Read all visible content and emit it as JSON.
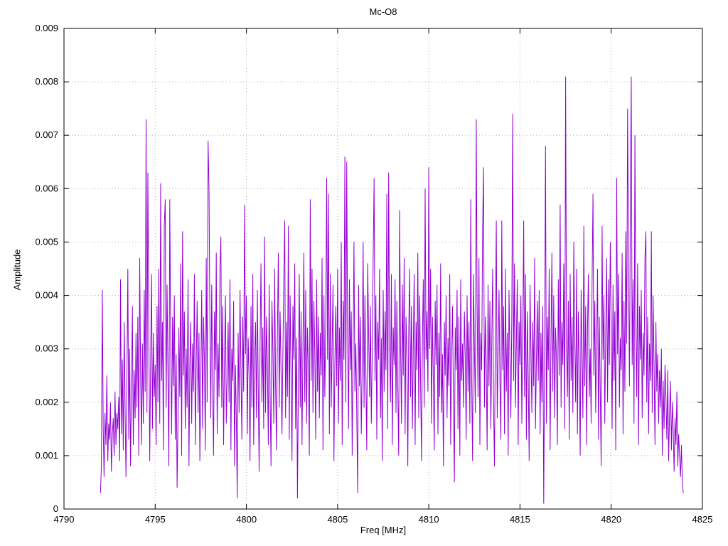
{
  "page": {
    "background": "#ffffff"
  },
  "chart_data": {
    "type": "line",
    "title": "Mc-O8",
    "xlabel": "Freq [MHz]",
    "ylabel": "Amplitude",
    "xlim": [
      4790,
      4825
    ],
    "ylim": [
      0,
      0.009
    ],
    "x_ticks": [
      4790,
      4795,
      4800,
      4805,
      4810,
      4815,
      4820,
      4825
    ],
    "y_ticks": [
      0,
      0.001,
      0.002,
      0.003,
      0.004,
      0.005,
      0.006,
      0.007,
      0.008,
      0.009
    ],
    "grid": true,
    "legend": "none",
    "line_color": "#9400d3",
    "grid_color": "#b5b5b5",
    "axis_color": "#000000",
    "series_x_start": 4792.0,
    "series_x_step": 0.05,
    "amplitude_scale": 0.0001,
    "values": [
      3,
      8,
      41,
      15,
      6,
      18,
      12,
      25,
      9,
      16,
      13,
      20,
      7,
      14,
      17,
      10,
      22,
      12,
      18,
      15,
      21,
      9,
      43,
      14,
      28,
      11,
      35,
      18,
      6,
      24,
      45,
      13,
      30,
      8,
      22,
      38,
      12,
      26,
      17,
      33,
      19,
      36,
      10,
      47,
      25,
      12,
      31,
      16,
      41,
      22,
      73,
      18,
      63,
      35,
      9,
      28,
      44,
      15,
      33,
      21,
      27,
      12,
      38,
      20,
      45,
      16,
      61,
      24,
      35,
      11,
      53,
      58,
      19,
      42,
      26,
      8,
      58,
      31,
      14,
      36,
      23,
      40,
      13,
      29,
      4,
      17,
      34,
      21,
      46,
      10,
      52,
      25,
      37,
      15,
      30,
      19,
      43,
      8,
      27,
      35,
      16,
      31,
      22,
      44,
      12,
      27,
      39,
      18,
      33,
      9,
      24,
      41,
      15,
      36,
      28,
      11,
      47,
      20,
      69,
      60,
      34,
      17,
      42,
      23,
      10,
      37,
      26,
      48,
      14,
      31,
      21,
      45,
      51,
      19,
      38,
      12,
      29,
      40,
      16,
      25,
      35,
      20,
      43,
      11,
      30,
      24,
      39,
      8,
      27,
      16,
      2,
      33,
      18,
      41,
      26,
      13,
      36,
      22,
      57,
      29,
      40,
      14,
      32,
      25,
      9,
      38,
      19,
      44,
      12,
      28,
      35,
      17,
      41,
      23,
      7,
      31,
      46,
      20,
      34,
      15,
      51,
      18,
      36,
      27,
      12,
      42,
      22,
      8,
      39,
      30,
      16,
      45,
      24,
      11,
      33,
      48,
      19,
      37,
      26,
      14,
      29,
      43,
      54,
      17,
      35,
      21,
      53,
      13,
      40,
      25,
      9,
      38,
      28,
      46,
      15,
      32,
      2,
      23,
      44,
      19,
      37,
      12,
      30,
      48,
      20,
      41,
      16,
      34,
      26,
      10,
      58,
      24,
      45,
      18,
      39,
      29,
      13,
      43,
      22,
      36,
      17,
      33,
      25,
      47,
      11,
      40,
      21,
      35,
      62,
      28,
      59,
      14,
      44,
      19,
      31,
      42,
      9,
      27,
      38,
      23,
      45,
      16,
      34,
      24,
      50,
      12,
      39,
      28,
      66,
      20,
      65,
      32,
      15,
      43,
      26,
      37,
      10,
      30,
      50,
      22,
      31,
      18,
      3,
      42,
      23,
      36,
      14,
      27,
      50,
      19,
      40,
      25,
      11,
      46,
      33,
      21,
      38,
      16,
      29,
      47,
      62,
      24,
      40,
      13,
      35,
      28,
      45,
      17,
      32,
      9,
      41,
      22,
      37,
      26,
      59,
      15,
      63,
      30,
      20,
      44,
      12,
      34,
      27,
      43,
      18,
      39,
      23,
      10,
      56,
      31,
      16,
      42,
      25,
      47,
      14,
      36,
      28,
      8,
      33,
      45,
      21,
      38,
      15,
      30,
      44,
      12,
      35,
      26,
      48,
      17,
      40,
      24,
      9,
      32,
      43,
      19,
      60,
      28,
      37,
      22,
      64,
      30,
      45,
      16,
      36,
      24,
      11,
      39,
      27,
      42,
      14,
      33,
      21,
      46,
      18,
      29,
      8,
      35,
      25,
      40,
      17,
      32,
      23,
      44,
      12,
      28,
      38,
      20,
      5,
      34,
      26,
      41,
      15,
      36,
      10,
      43,
      24,
      31,
      19,
      37,
      28,
      13,
      40,
      22,
      35,
      16,
      58,
      25,
      9,
      44,
      30,
      18,
      73,
      38,
      21,
      47,
      12,
      33,
      26,
      52,
      64,
      19,
      36,
      27,
      11,
      42,
      23,
      39,
      15,
      31,
      45,
      20,
      8,
      34,
      54,
      17,
      29,
      41,
      24,
      13,
      54,
      26,
      38,
      14,
      45,
      22,
      33,
      10,
      41,
      28,
      17,
      36,
      74,
      24,
      46,
      19,
      31,
      43,
      12,
      35,
      27,
      40,
      16,
      32,
      54,
      21,
      44,
      13,
      37,
      25,
      9,
      42,
      30,
      18,
      35,
      23,
      47,
      15,
      28,
      39,
      24,
      41,
      14,
      33,
      20,
      38,
      1,
      29,
      68,
      16,
      36,
      26,
      45,
      11,
      31,
      48,
      22,
      40,
      17,
      34,
      28,
      12,
      43,
      25,
      57,
      19,
      35,
      27,
      46,
      15,
      81,
      30,
      21,
      39,
      13,
      44,
      24,
      36,
      18,
      50,
      32,
      20,
      45,
      14,
      37,
      26,
      10,
      41,
      29,
      17,
      53,
      23,
      38,
      12,
      34,
      44,
      21,
      30,
      16,
      42,
      59,
      25,
      39,
      18,
      31,
      45,
      13,
      36,
      22,
      8,
      53,
      28,
      40,
      16,
      33,
      47,
      20,
      43,
      27,
      50,
      35,
      15,
      42,
      24,
      37,
      11,
      62,
      29,
      44,
      19,
      32,
      26,
      48,
      14,
      39,
      22,
      52,
      31,
      75,
      45,
      23,
      58,
      81,
      27,
      43,
      16,
      70,
      34,
      21,
      46,
      12,
      38,
      28,
      41,
      17,
      33,
      25,
      47,
      52,
      20,
      36,
      14,
      31,
      24,
      52,
      18,
      40,
      27,
      12,
      35,
      22,
      29,
      16,
      26,
      19,
      30,
      10,
      24,
      15,
      27,
      21,
      13,
      26,
      9,
      18,
      24,
      11,
      20,
      15,
      7,
      17,
      12,
      22,
      8,
      14,
      10,
      6,
      12,
      5,
      3
    ]
  }
}
